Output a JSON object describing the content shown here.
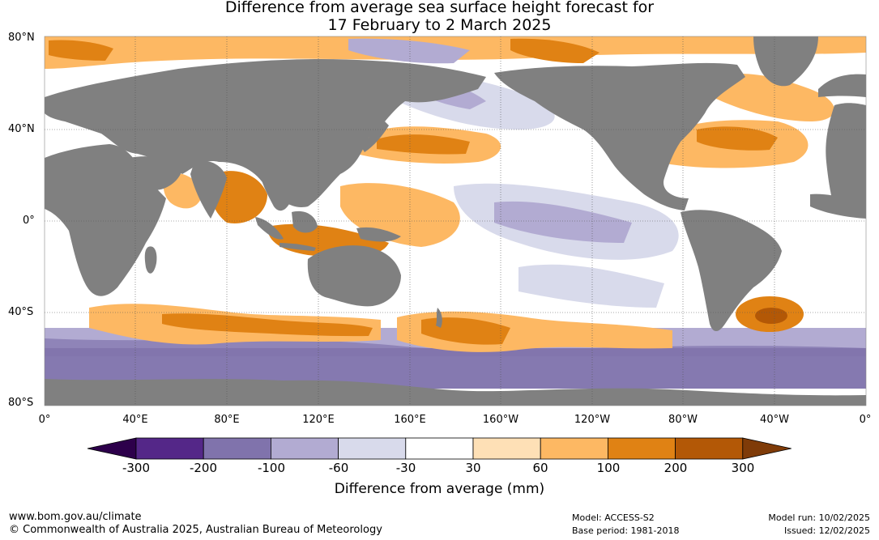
{
  "title": {
    "line1": "Difference from average sea surface height forecast for",
    "line2": "17 February to 2 March 2025"
  },
  "map": {
    "lat_labels": [
      "80°N",
      "40°N",
      "0°",
      "40°S",
      "80°S"
    ],
    "lon_labels": [
      "0°",
      "40°E",
      "80°E",
      "120°E",
      "160°E",
      "160°W",
      "120°W",
      "80°W",
      "40°W",
      "0°"
    ],
    "colors": {
      "land": "#808080",
      "ocean_neutral": "#ffffff",
      "grid": "#555555"
    }
  },
  "colorbar": {
    "title": "Difference from average (mm)",
    "tick_labels": [
      "-300",
      "-200",
      "-100",
      "-60",
      "-30",
      "30",
      "60",
      "100",
      "200",
      "300"
    ],
    "colors": [
      "#2d004b",
      "#542788",
      "#8073ac",
      "#b2abd2",
      "#d8daeb",
      "#ffffff",
      "#fee0b6",
      "#fdb863",
      "#e08214",
      "#b35806",
      "#7f3b08"
    ]
  },
  "footer": {
    "website": "www.bom.gov.au/climate",
    "copyright": "© Commonwealth of Australia 2025, Australian Bureau of Meteorology",
    "model": "Model: ACCESS-S2",
    "base_period": "Base period: 1981-2018",
    "model_run": "Model run: 10/02/2025",
    "issued": "Issued: 12/02/2025"
  }
}
